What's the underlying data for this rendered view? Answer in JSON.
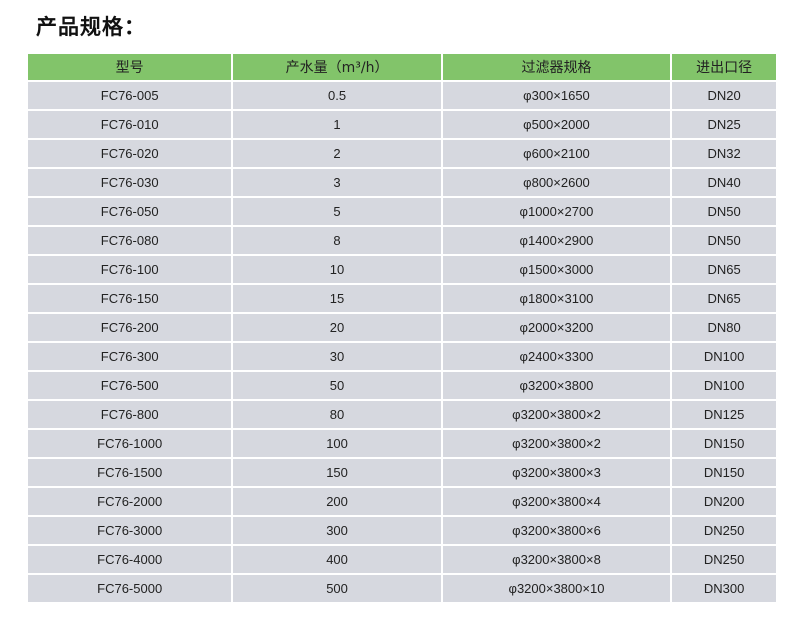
{
  "title": "产品规格：",
  "table": {
    "headers": [
      "型号",
      "产水量（m³/h）",
      "过滤器规格",
      "进出口径"
    ],
    "rows": [
      [
        "FC76-005",
        "0.5",
        "φ300×1650",
        "DN20"
      ],
      [
        "FC76-010",
        "1",
        "φ500×2000",
        "DN25"
      ],
      [
        "FC76-020",
        "2",
        "φ600×2100",
        "DN32"
      ],
      [
        "FC76-030",
        "3",
        "φ800×2600",
        "DN40"
      ],
      [
        "FC76-050",
        "5",
        "φ1000×2700",
        "DN50"
      ],
      [
        "FC76-080",
        "8",
        "φ1400×2900",
        "DN50"
      ],
      [
        "FC76-100",
        "10",
        "φ1500×3000",
        "DN65"
      ],
      [
        "FC76-150",
        "15",
        "φ1800×3100",
        "DN65"
      ],
      [
        "FC76-200",
        "20",
        "φ2000×3200",
        "DN80"
      ],
      [
        "FC76-300",
        "30",
        "φ2400×3300",
        "DN100"
      ],
      [
        "FC76-500",
        "50",
        "φ3200×3800",
        "DN100"
      ],
      [
        "FC76-800",
        "80",
        "φ3200×3800×2",
        "DN125"
      ],
      [
        "FC76-1000",
        "100",
        "φ3200×3800×2",
        "DN150"
      ],
      [
        "FC76-1500",
        "150",
        "φ3200×3800×3",
        "DN150"
      ],
      [
        "FC76-2000",
        "200",
        "φ3200×3800×4",
        "DN200"
      ],
      [
        "FC76-3000",
        "300",
        "φ3200×3800×6",
        "DN250"
      ],
      [
        "FC76-4000",
        "400",
        "φ3200×3800×8",
        "DN250"
      ],
      [
        "FC76-5000",
        "500",
        "φ3200×3800×10",
        "DN300"
      ]
    ]
  },
  "colors": {
    "header": "#82c46a",
    "row": "#d6d8df"
  }
}
